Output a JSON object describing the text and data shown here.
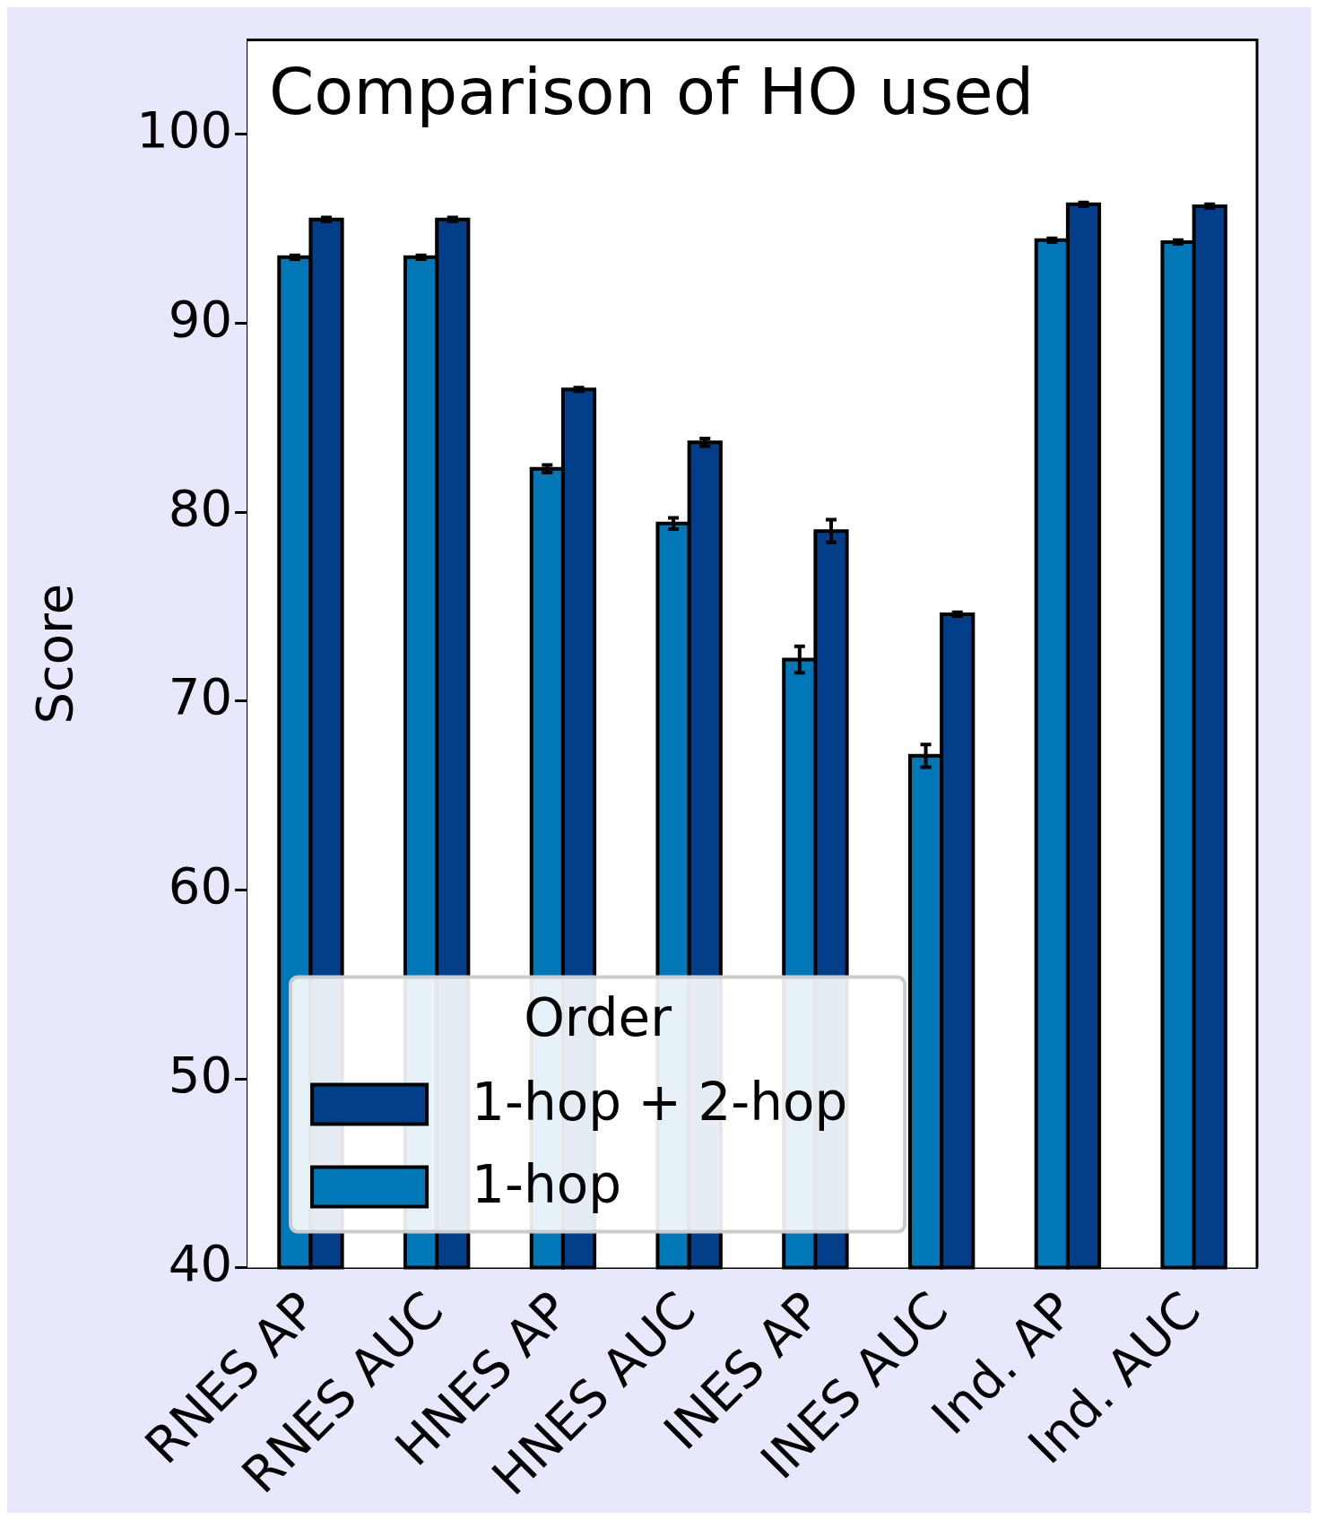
{
  "chart_data": {
    "type": "bar",
    "title": "Comparison of HO used",
    "ylabel": "Score",
    "legend_title": "Order",
    "legend": "bottom left",
    "categories": [
      "RNES AP",
      "RNES AUC",
      "HNES AP",
      "HNES AUC",
      "INES AP",
      "INES AUC",
      "Ind. AP",
      "Ind. AUC"
    ],
    "series": [
      {
        "name": "1-hop",
        "color": "#0077b6",
        "values": [
          93.5,
          93.5,
          82.3,
          79.4,
          72.2,
          67.1,
          94.4,
          94.3
        ],
        "errors": [
          0.1,
          0.1,
          0.2,
          0.3,
          0.7,
          0.6,
          0.1,
          0.1
        ]
      },
      {
        "name": "1-hop + 2-hop",
        "color": "#023e8a",
        "values": [
          95.5,
          95.5,
          86.5,
          83.7,
          79.0,
          74.6,
          96.3,
          96.2
        ],
        "errors": [
          0.1,
          0.1,
          0.1,
          0.2,
          0.6,
          0.1,
          0.1,
          0.1
        ]
      }
    ],
    "ylim": [
      40,
      105
    ],
    "yticks": [
      40,
      50,
      60,
      70,
      80,
      90,
      100
    ],
    "grid": false
  }
}
